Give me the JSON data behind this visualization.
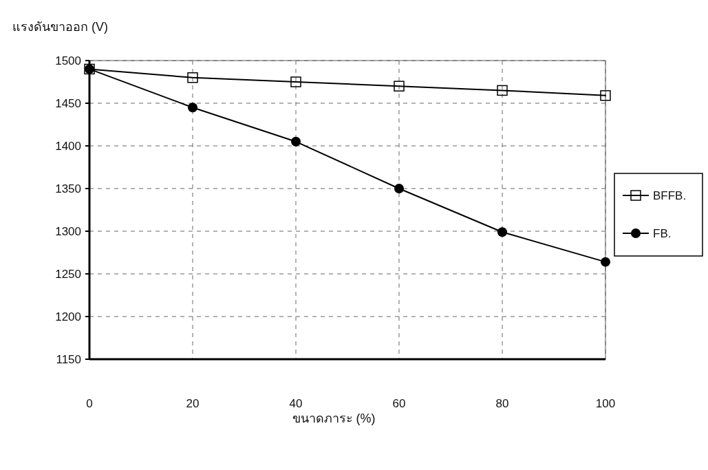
{
  "chart_data": {
    "type": "line",
    "ylabel": "แรงดันขาออก (V)",
    "xlabel": "ขนาดภาระ (%)",
    "x": [
      0,
      20,
      40,
      60,
      80,
      100
    ],
    "series": [
      {
        "name": "BFFB.",
        "color": "#000000",
        "marker": "square",
        "values": [
          1490,
          1480,
          1475,
          1470,
          1465,
          1459
        ]
      },
      {
        "name": "FB.",
        "color": "#000000",
        "marker": "circle",
        "values": [
          1490,
          1445,
          1405,
          1350,
          1299,
          1264
        ]
      }
    ],
    "xlim": [
      0,
      100
    ],
    "xticks": [
      0,
      20,
      40,
      60,
      80,
      100
    ],
    "ylim": [
      1150,
      1500
    ],
    "yticks": [
      1150,
      1200,
      1250,
      1300,
      1350,
      1400,
      1450,
      1500
    ],
    "grid": true,
    "legend": "right",
    "line_style": "solid"
  }
}
